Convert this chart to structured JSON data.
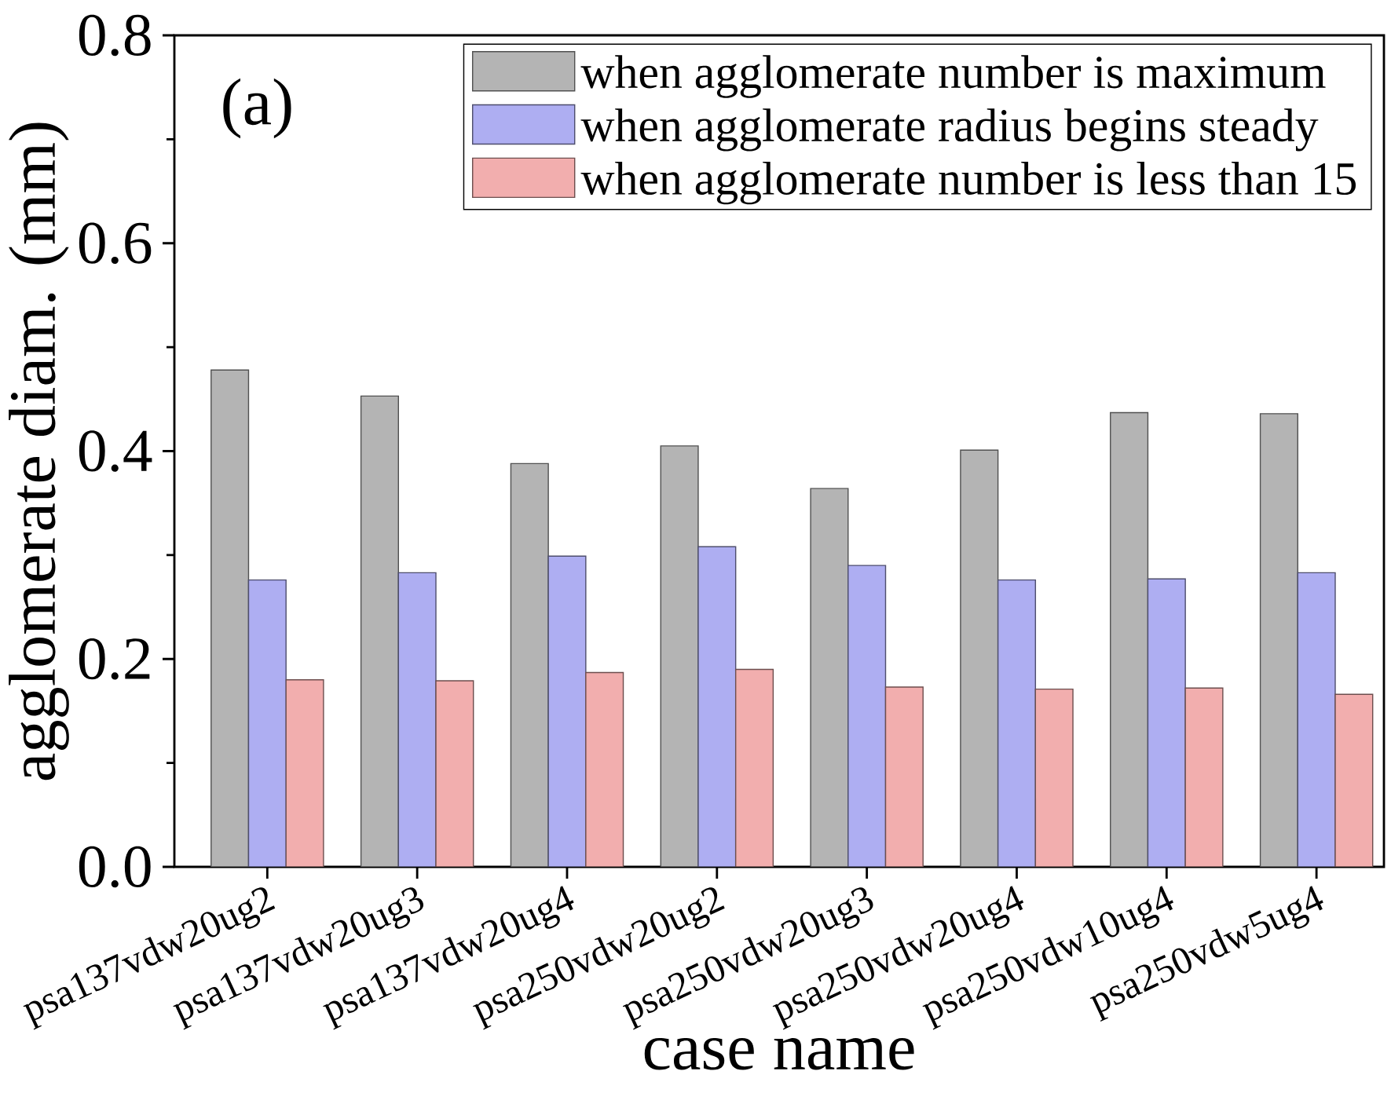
{
  "chart_data": {
    "type": "bar",
    "xlabel": "case name",
    "ylabel": "agglomerate diam. (mm)",
    "annotations": [
      "(a)"
    ],
    "categories": [
      "psa137vdw20ug2",
      "psa137vdw20ug3",
      "psa137vdw20ug4",
      "psa250vdw20ug2",
      "psa250vdw20ug3",
      "psa250vdw20ug4",
      "psa250vdw10ug4",
      "psa250vdw5ug4"
    ],
    "series": [
      {
        "name": "when agglomerate number is maximum",
        "color": "#b4b4b4",
        "values": [
          0.478,
          0.453,
          0.388,
          0.405,
          0.364,
          0.401,
          0.437,
          0.436
        ]
      },
      {
        "name": "when agglomerate radius begins steady",
        "color": "#aeaef2",
        "values": [
          0.276,
          0.283,
          0.299,
          0.308,
          0.29,
          0.276,
          0.277,
          0.283
        ]
      },
      {
        "name": "when agglomerate number is less than 15",
        "color": "#f2aeae",
        "values": [
          0.18,
          0.179,
          0.187,
          0.19,
          0.173,
          0.171,
          0.172,
          0.166
        ]
      }
    ],
    "ylim": [
      0,
      0.8
    ],
    "yticks": [
      {
        "value": 0,
        "label": "0.0"
      },
      {
        "value": 0.2,
        "label": "0.2"
      },
      {
        "value": 0.4,
        "label": "0.4"
      },
      {
        "value": 0.6,
        "label": "0.6"
      },
      {
        "value": 0.8,
        "label": "0.8"
      }
    ],
    "legend": "top right",
    "grid": false
  }
}
